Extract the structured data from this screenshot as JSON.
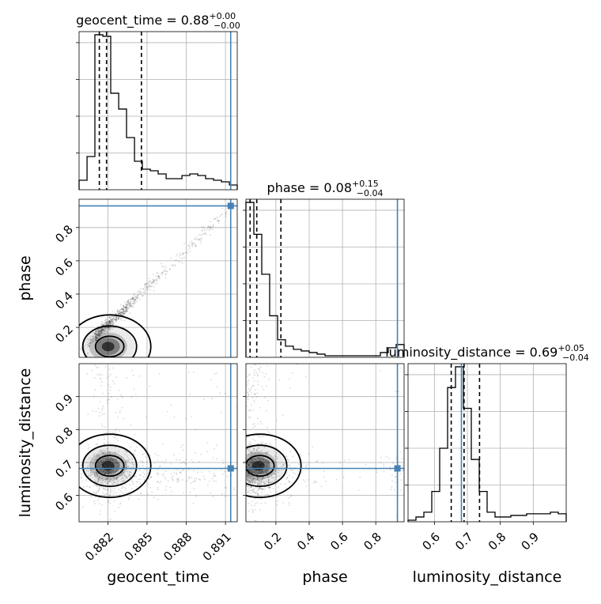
{
  "chart_data": {
    "type": "corner",
    "parameters": [
      "geocent_time",
      "phase",
      "luminosity_distance"
    ],
    "truths": {
      "geocent_time": 0.8914,
      "phase": 0.93,
      "luminosity_distance": 0.682
    },
    "marginal_titles": [
      {
        "param": "geocent_time",
        "text": "geocent_time = 0.88",
        "plus": "+0.00",
        "minus": "−0.00"
      },
      {
        "param": "phase",
        "text": "phase = 0.08",
        "plus": "+0.15",
        "minus": "−0.04"
      },
      {
        "param": "luminosity_distance",
        "text": "luminosity_distance = 0.69",
        "plus": "+0.05",
        "minus": "−0.04"
      }
    ],
    "axes": {
      "geocent_time": {
        "label": "geocent_time",
        "range": [
          0.8798,
          0.8919
        ],
        "ticks": [
          0.882,
          0.885,
          0.888,
          0.891
        ],
        "tick_labels": [
          "0.882",
          "0.885",
          "0.888",
          "0.891"
        ]
      },
      "phase": {
        "label": "phase",
        "range": [
          0.02,
          0.97
        ],
        "ticks": [
          0.2,
          0.4,
          0.6,
          0.8
        ],
        "tick_labels": [
          "0.2",
          "0.4",
          "0.6",
          "0.8"
        ]
      },
      "luminosity_distance": {
        "label": "luminosity_distance",
        "range": [
          0.52,
          1.0
        ],
        "ticks": [
          0.6,
          0.7,
          0.8,
          0.9
        ],
        "tick_labels": [
          "0.6",
          "0.7",
          "0.8",
          "0.9"
        ]
      }
    },
    "histograms": {
      "geocent_time": {
        "edges": [
          0.8798,
          0.88041,
          0.88101,
          0.88162,
          0.88222,
          0.88283,
          0.88343,
          0.88404,
          0.88464,
          0.88525,
          0.88585,
          0.88646,
          0.88706,
          0.88767,
          0.88827,
          0.88888,
          0.88948,
          0.89009,
          0.89069,
          0.8913,
          0.8919
        ],
        "counts": [
          0.06,
          0.21,
          0.98,
          0.97,
          0.61,
          0.51,
          0.33,
          0.18,
          0.13,
          0.12,
          0.1,
          0.07,
          0.07,
          0.09,
          0.1,
          0.09,
          0.07,
          0.06,
          0.05,
          0.03
        ],
        "quantiles": [
          0.88135,
          0.8819,
          0.88457
        ]
      },
      "phase": {
        "edges": [
          0.02,
          0.0675,
          0.115,
          0.1625,
          0.21,
          0.2575,
          0.305,
          0.3525,
          0.4,
          0.4475,
          0.495,
          0.5425,
          0.59,
          0.6375,
          0.685,
          0.7325,
          0.78,
          0.8275,
          0.875,
          0.9225,
          0.97
        ],
        "counts": [
          0.97,
          0.77,
          0.52,
          0.26,
          0.11,
          0.07,
          0.05,
          0.04,
          0.03,
          0.02,
          0.01,
          0.01,
          0.01,
          0.01,
          0.01,
          0.01,
          0.01,
          0.03,
          0.06,
          0.08
        ],
        "quantiles": [
          0.045,
          0.085,
          0.23
        ]
      },
      "luminosity_distance": {
        "edges": [
          0.52,
          0.544,
          0.568,
          0.592,
          0.616,
          0.64,
          0.664,
          0.688,
          0.712,
          0.736,
          0.76,
          0.784,
          0.808,
          0.832,
          0.856,
          0.88,
          0.904,
          0.928,
          0.952,
          0.976,
          1.0
        ],
        "counts": [
          0.01,
          0.03,
          0.06,
          0.19,
          0.46,
          0.84,
          0.97,
          0.71,
          0.39,
          0.19,
          0.06,
          0.03,
          0.03,
          0.04,
          0.04,
          0.05,
          0.05,
          0.05,
          0.06,
          0.05
        ],
        "quantiles": [
          0.651,
          0.69,
          0.737
        ]
      }
    },
    "grid": true,
    "show_titles": true
  }
}
